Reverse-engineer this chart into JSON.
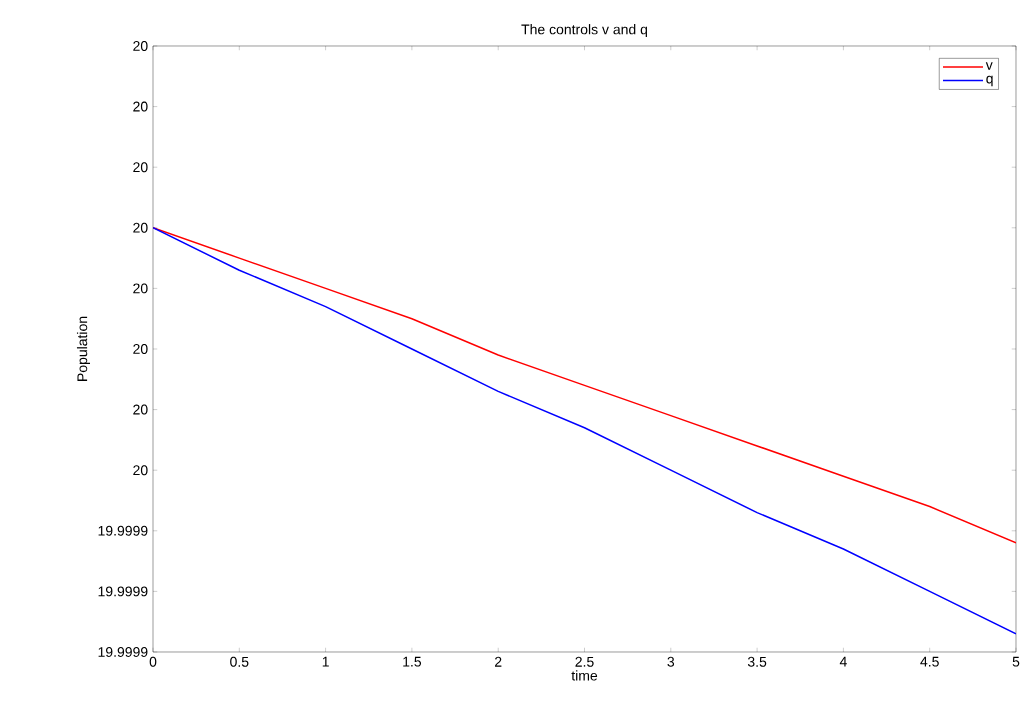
{
  "chart_data": {
    "type": "line",
    "title": "The controls v and q",
    "xlabel": "time",
    "ylabel": "Population",
    "x": [
      0,
      0.5,
      1,
      1.5,
      2,
      2.5,
      3,
      3.5,
      4,
      4.5,
      5
    ],
    "series": [
      {
        "name": "v",
        "color": "#ff0000",
        "values": [
          20,
          19.999995,
          19.99999,
          19.999985,
          19.999979,
          19.999974,
          19.999969,
          19.999964,
          19.999959,
          19.999954,
          19.999948
        ]
      },
      {
        "name": "q",
        "color": "#0000ff",
        "values": [
          20,
          19.999993,
          19.999987,
          19.99998,
          19.999973,
          19.999967,
          19.99996,
          19.999953,
          19.999947,
          19.99994,
          19.999933
        ]
      }
    ],
    "xlim": [
      0,
      5
    ],
    "xticks": [
      0,
      0.5,
      1,
      1.5,
      2,
      2.5,
      3,
      3.5,
      4,
      4.5,
      5
    ],
    "ylim": [
      19.99993,
      20.00003
    ],
    "yticks": [
      {
        "value": 19.99993,
        "label": "19.9999"
      },
      {
        "value": 19.99994,
        "label": "19.9999"
      },
      {
        "value": 19.99995,
        "label": "19.9999"
      },
      {
        "value": 19.99996,
        "label": "20"
      },
      {
        "value": 19.99997,
        "label": "20"
      },
      {
        "value": 19.99998,
        "label": "20"
      },
      {
        "value": 19.99999,
        "label": "20"
      },
      {
        "value": 20,
        "label": "20"
      },
      {
        "value": 20.00001,
        "label": "20"
      },
      {
        "value": 20.00002,
        "label": "20"
      },
      {
        "value": 20.00003,
        "label": "20"
      }
    ],
    "grid": false,
    "legend": "top right",
    "marker": "none",
    "line_style": "solid"
  }
}
